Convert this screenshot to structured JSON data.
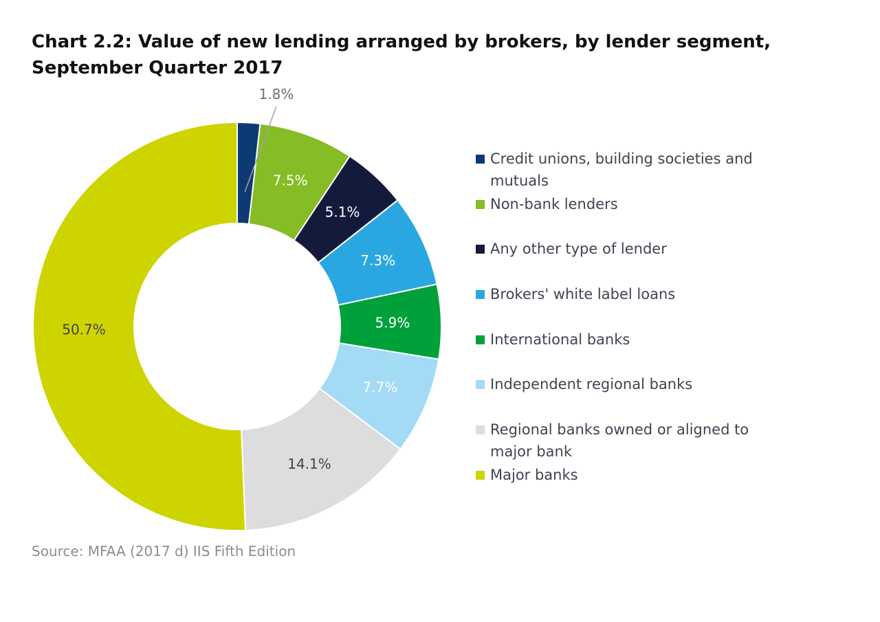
{
  "title": "Chart 2.2: Value of new lending arranged by brokers, by lender segment, September Quarter 2017",
  "source": "Source: MFAA (2017 d) IIS Fifth Edition",
  "chart_data": {
    "type": "pie",
    "variant": "donut",
    "title": "Chart 2.2: Value of new lending arranged by brokers, by lender segment, September Quarter 2017",
    "unit": "%",
    "legend_position": "right",
    "slices": [
      {
        "label": "Credit unions, building societies and mutuals",
        "value": 1.8,
        "display": "1.8%",
        "color": "#0e3a73",
        "label_color": "#6b6f78"
      },
      {
        "label": "Non-bank lenders",
        "value": 7.5,
        "display": "7.5%",
        "color": "#86bc25",
        "label_color": "#ffffff"
      },
      {
        "label": "Any other type of lender",
        "value": 5.1,
        "display": "5.1%",
        "color": "#141a3b",
        "label_color": "#ffffff"
      },
      {
        "label": "Brokers' white label loans",
        "value": 7.3,
        "display": "7.3%",
        "color": "#2aa7e0",
        "label_color": "#ffffff"
      },
      {
        "label": "International banks",
        "value": 5.9,
        "display": "5.9%",
        "color": "#00a13a",
        "label_color": "#ffffff"
      },
      {
        "label": "Independent regional banks",
        "value": 7.7,
        "display": "7.7%",
        "color": "#a3daf6",
        "label_color": "#ffffff"
      },
      {
        "label": "Regional banks owned or aligned to major bank",
        "value": 14.1,
        "display": "14.1%",
        "color": "#dddddd",
        "label_color": "#3f4450"
      },
      {
        "label": "Major banks",
        "value": 50.7,
        "display": "50.7%",
        "color": "#cdd400",
        "label_color": "#3f4450"
      }
    ]
  }
}
